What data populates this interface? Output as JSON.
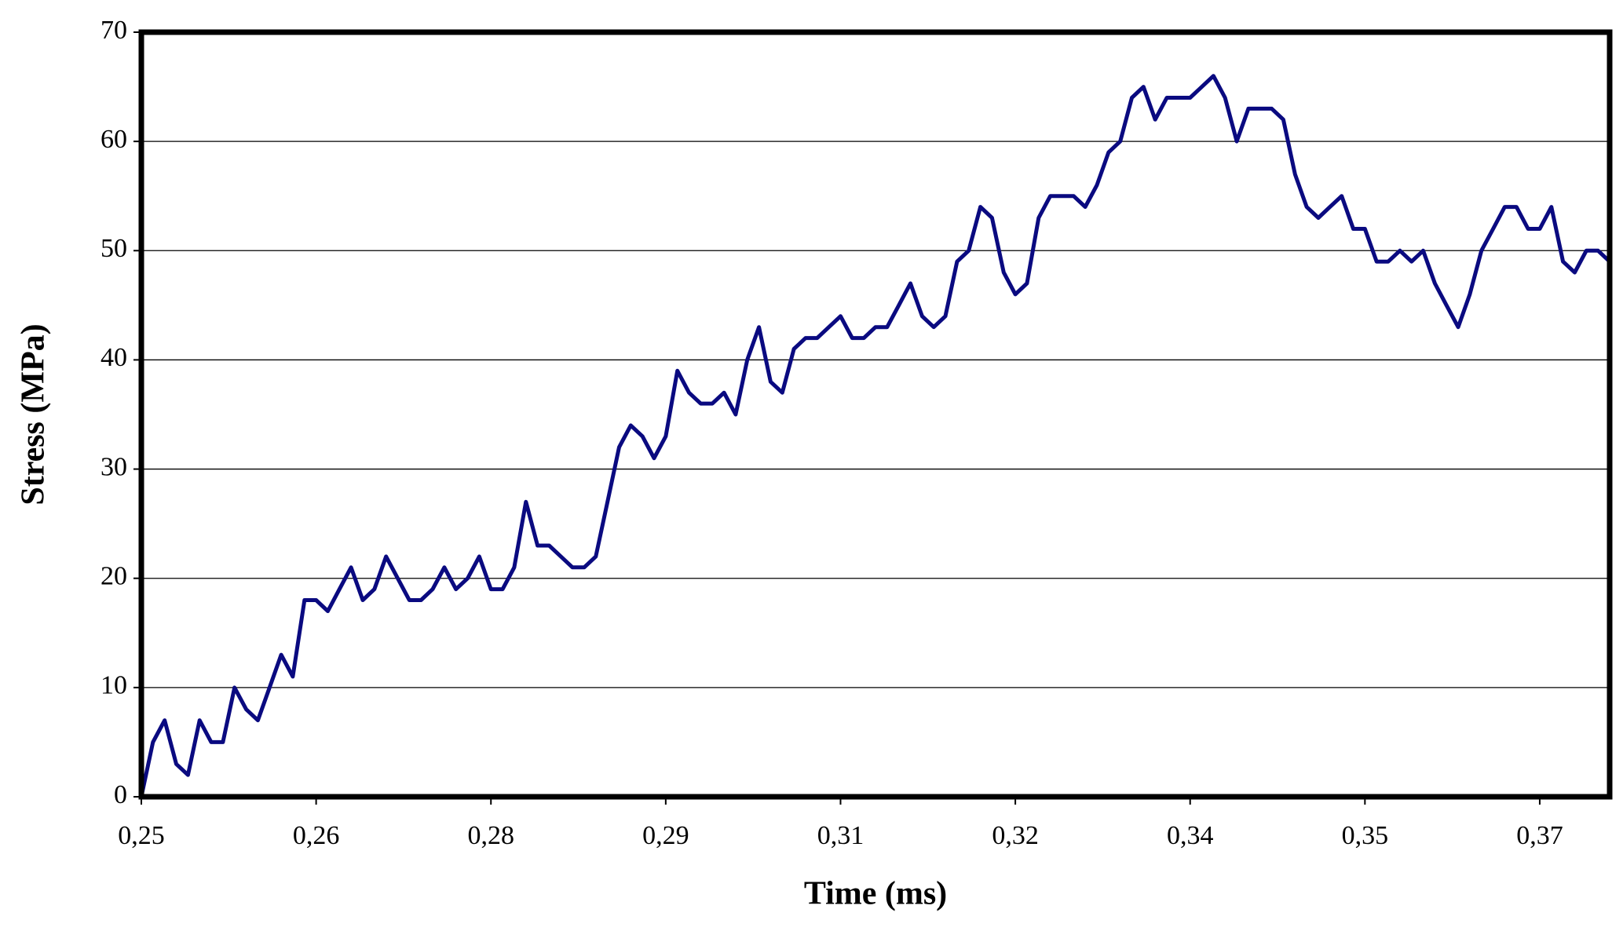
{
  "chart_data": {
    "type": "line",
    "xlabel": "Time (ms)",
    "ylabel": "Stress (MPa)",
    "x": [
      0.25,
      0.251,
      0.252,
      0.253,
      0.254,
      0.255,
      0.256,
      0.257,
      0.258,
      0.259,
      0.26,
      0.261,
      0.262,
      0.263,
      0.264,
      0.265,
      0.266,
      0.267,
      0.268,
      0.269,
      0.27,
      0.271,
      0.272,
      0.273,
      0.274,
      0.275,
      0.276,
      0.277,
      0.278,
      0.279,
      0.28,
      0.281,
      0.282,
      0.283,
      0.284,
      0.285,
      0.286,
      0.287,
      0.288,
      0.289,
      0.29,
      0.291,
      0.292,
      0.293,
      0.294,
      0.295,
      0.296,
      0.297,
      0.298,
      0.299,
      0.3,
      0.301,
      0.302,
      0.303,
      0.304,
      0.305,
      0.306,
      0.307,
      0.308,
      0.309,
      0.31,
      0.311,
      0.312,
      0.313,
      0.314,
      0.315,
      0.316,
      0.317,
      0.318,
      0.319,
      0.32,
      0.321,
      0.322,
      0.323,
      0.324,
      0.325,
      0.326,
      0.327,
      0.328,
      0.329,
      0.33,
      0.331,
      0.332,
      0.333,
      0.334,
      0.335,
      0.336,
      0.337,
      0.338,
      0.339,
      0.34,
      0.341,
      0.342,
      0.343,
      0.344,
      0.345,
      0.346,
      0.347,
      0.348,
      0.349,
      0.35,
      0.351,
      0.352,
      0.353,
      0.354,
      0.355,
      0.356,
      0.357,
      0.358,
      0.359,
      0.36,
      0.361,
      0.362,
      0.363,
      0.364,
      0.365,
      0.366,
      0.367,
      0.368,
      0.369,
      0.37,
      0.371,
      0.372,
      0.373,
      0.374,
      0.375,
      0.376
    ],
    "series": [
      {
        "name": "Stress",
        "color": "#0a0a80",
        "values": [
          0,
          5,
          7,
          3,
          2,
          7,
          5,
          5,
          10,
          8,
          7,
          10,
          13,
          11,
          18,
          18,
          17,
          19,
          21,
          18,
          19,
          22,
          20,
          18,
          18,
          19,
          21,
          19,
          20,
          22,
          19,
          19,
          21,
          27,
          23,
          23,
          22,
          21,
          21,
          22,
          27,
          32,
          34,
          33,
          31,
          33,
          39,
          37,
          36,
          36,
          37,
          35,
          40,
          43,
          38,
          37,
          41,
          42,
          42,
          43,
          44,
          42,
          42,
          43,
          43,
          45,
          47,
          44,
          43,
          44,
          49,
          50,
          54,
          53,
          48,
          46,
          47,
          53,
          55,
          55,
          55,
          54,
          56,
          59,
          60,
          64,
          65,
          62,
          64,
          64,
          64,
          65,
          66,
          64,
          60,
          63,
          63,
          63,
          62,
          57,
          54,
          53,
          54,
          55,
          52,
          52,
          49,
          49,
          50,
          49,
          50,
          47,
          45,
          43,
          46,
          50,
          52,
          54,
          54,
          52,
          52,
          54,
          49,
          48,
          50,
          50,
          49
        ]
      }
    ],
    "xlim": [
      0.25,
      0.376
    ],
    "xticks": [
      {
        "value": 0.25,
        "label": "0,25"
      },
      {
        "value": 0.265,
        "label": "0,26"
      },
      {
        "value": 0.28,
        "label": "0,28"
      },
      {
        "value": 0.295,
        "label": "0,29"
      },
      {
        "value": 0.31,
        "label": "0,31"
      },
      {
        "value": 0.325,
        "label": "0,32"
      },
      {
        "value": 0.34,
        "label": "0,34"
      },
      {
        "value": 0.355,
        "label": "0,35"
      },
      {
        "value": 0.37,
        "label": "0,37"
      }
    ],
    "ylim": [
      0,
      70
    ],
    "yticks": [
      0,
      10,
      20,
      30,
      40,
      50,
      60,
      70
    ],
    "grid": true
  }
}
